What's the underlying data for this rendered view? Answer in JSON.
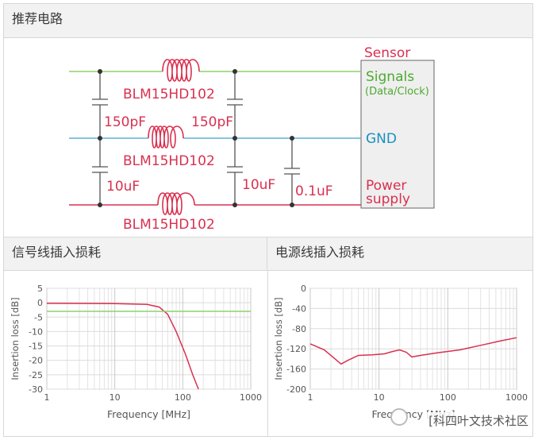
{
  "sections": {
    "recommended_circuit": "推荐电路",
    "signal_loss": "信号线插入损耗",
    "power_loss": "电源线插入损耗"
  },
  "circuit": {
    "sensor_label": "Sensor",
    "signals_label": "Signals",
    "data_clock_label": "(Data/Clock)",
    "gnd_label": "GND",
    "power_label": "Power",
    "supply_label": "supply",
    "inductor_signal": "BLM15HD102",
    "inductor_gnd": "BLM15HD102",
    "inductor_power": "BLM15HD102",
    "cap_signal_left": "150pF",
    "cap_signal_right": "150pF",
    "cap_power_left": "10uF",
    "cap_power_right": "10uF",
    "cap_power_extra": "0.1uF",
    "colors": {
      "signal_line": "#8cd36b",
      "gnd_line": "#5bb3d6",
      "power_line": "#d9304f",
      "label_red": "#d9304f",
      "label_green": "#4caa2f",
      "label_blue": "#1a8fc0"
    }
  },
  "chart_data": [
    {
      "type": "line",
      "title": "信号线插入损耗",
      "xlabel": "Frequency [MHz]",
      "ylabel": "Insertion loss [dB]",
      "xscale": "log",
      "xlim": [
        1,
        1000
      ],
      "ylim": [
        -30,
        5
      ],
      "x_ticks": [
        "1",
        "10",
        "100",
        "1000"
      ],
      "y_ticks": [
        "5",
        "0",
        "-5",
        "-10",
        "-15",
        "-20",
        "-25",
        "-30"
      ],
      "grid": true,
      "series": [
        {
          "color": "#d9304f",
          "points": [
            [
              1,
              -0.2
            ],
            [
              10,
              -0.3
            ],
            [
              30,
              -0.6
            ],
            [
              45,
              -1.5
            ],
            [
              60,
              -4
            ],
            [
              80,
              -10
            ],
            [
              110,
              -18
            ],
            [
              140,
              -25
            ],
            [
              170,
              -30
            ]
          ]
        },
        {
          "color": "#8cd36b",
          "points": [
            [
              1,
              -3.0
            ],
            [
              1000,
              -3.0
            ]
          ]
        }
      ]
    },
    {
      "type": "line",
      "title": "电源线插入损耗",
      "xlabel": "Frequency [MHz]",
      "ylabel": "Insertion loss [dB]",
      "xscale": "log",
      "xlim": [
        1,
        1000
      ],
      "ylim": [
        -200,
        0
      ],
      "x_ticks": [
        "1",
        "10",
        "100",
        "1000"
      ],
      "y_ticks": [
        "0",
        "-40",
        "-80",
        "-120",
        "-160",
        "-200"
      ],
      "grid": true,
      "series": [
        {
          "color": "#d9304f",
          "points": [
            [
              1,
              -110
            ],
            [
              1.6,
              -122
            ],
            [
              2.3,
              -140
            ],
            [
              2.8,
              -150
            ],
            [
              3.5,
              -143
            ],
            [
              5,
              -133
            ],
            [
              8,
              -132
            ],
            [
              12,
              -130
            ],
            [
              16,
              -125
            ],
            [
              20,
              -122
            ],
            [
              25,
              -127
            ],
            [
              30,
              -136
            ],
            [
              40,
              -133
            ],
            [
              70,
              -128
            ],
            [
              150,
              -122
            ],
            [
              300,
              -113
            ],
            [
              600,
              -104
            ],
            [
              1000,
              -98
            ]
          ]
        }
      ]
    }
  ],
  "watermark": "[科四叶文技术社区"
}
